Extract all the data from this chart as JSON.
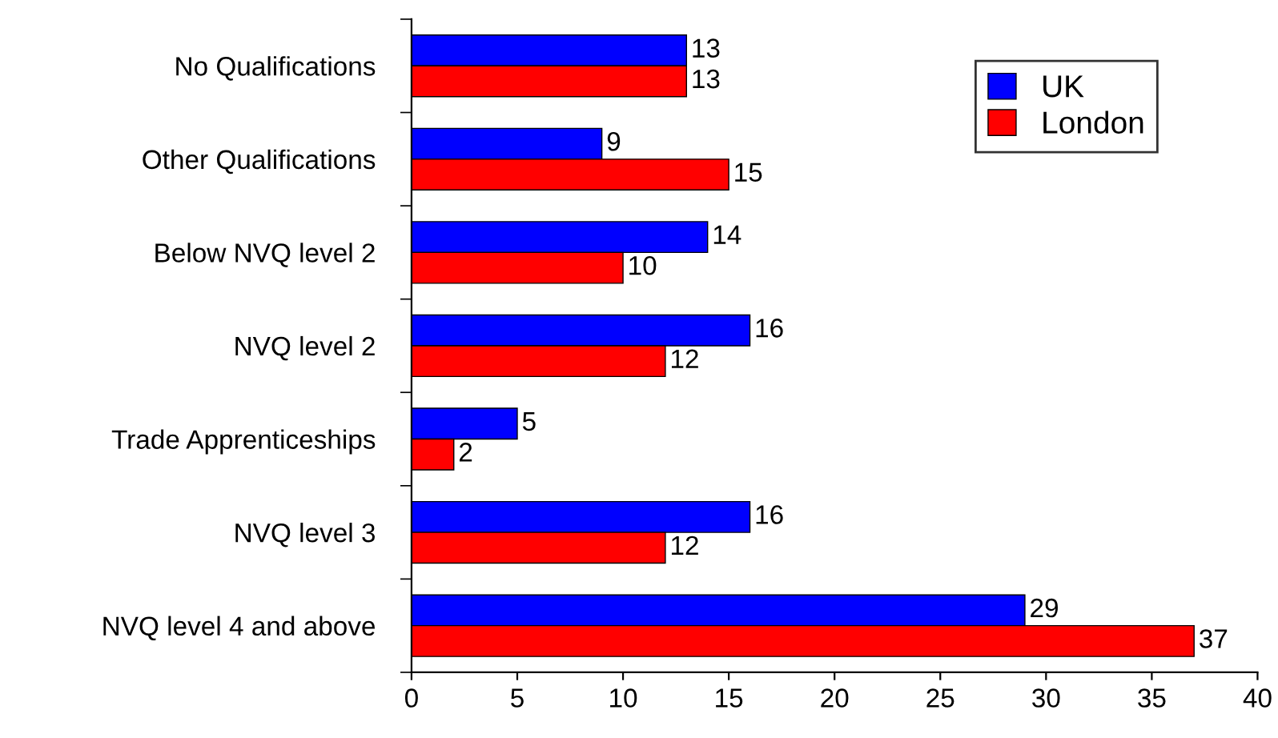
{
  "chart_data": {
    "type": "bar",
    "orientation": "horizontal",
    "categories": [
      "No Qualifications",
      "Other Qualifications",
      "Below NVQ level 2",
      "NVQ level 2",
      "Trade Apprenticeships",
      "NVQ level 3",
      "NVQ level 4 and above"
    ],
    "series": [
      {
        "name": "UK",
        "color": "#0000ff",
        "values": [
          13,
          9,
          14,
          16,
          5,
          16,
          29
        ]
      },
      {
        "name": "London",
        "color": "#ff0000",
        "values": [
          13,
          15,
          10,
          12,
          2,
          12,
          37
        ]
      }
    ],
    "xlim": [
      0,
      40
    ],
    "xticks": [
      0,
      5,
      10,
      15,
      20,
      25,
      30,
      35,
      40
    ],
    "data_labels": true,
    "legend": "top right",
    "grid": false
  }
}
